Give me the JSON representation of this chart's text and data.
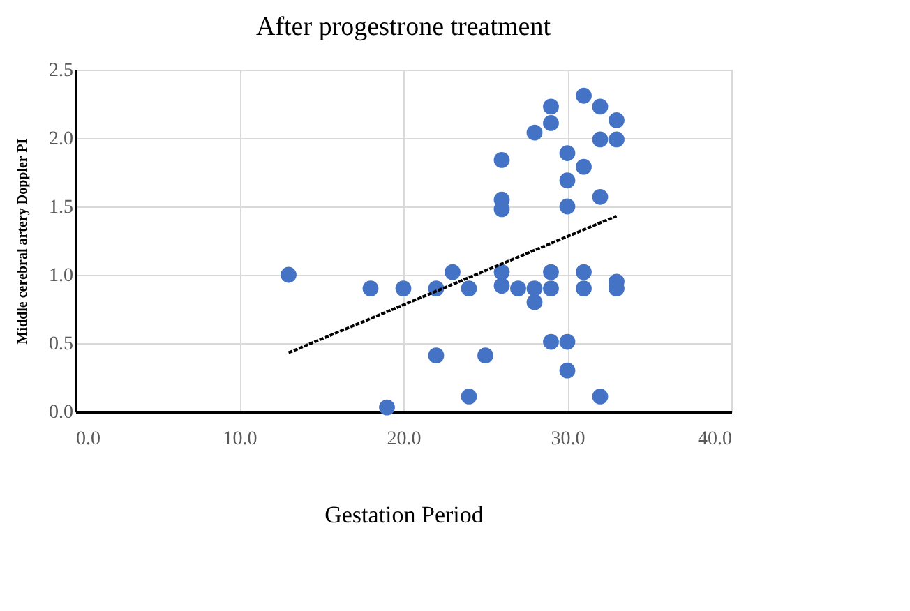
{
  "chart_data": {
    "type": "scatter",
    "title": "After progestrone treatment",
    "xlabel": "Gestation Period",
    "ylabel": "Middle cerebral artery Doppler PI",
    "series": [
      {
        "color": "#4472c4",
        "marker": "circle",
        "x": [
          13,
          18,
          19,
          20,
          22,
          22,
          23,
          24,
          24,
          25,
          26,
          26,
          26,
          26,
          26,
          27,
          28,
          28,
          28,
          29,
          29,
          29,
          29,
          29,
          30,
          30,
          30,
          30,
          30,
          31,
          31,
          31,
          31,
          32,
          32,
          32,
          32,
          33,
          33,
          33,
          33
        ],
        "values": [
          1.0,
          0.9,
          0.03,
          0.9,
          0.9,
          0.41,
          1.02,
          0.9,
          0.11,
          0.41,
          1.84,
          1.55,
          1.48,
          1.02,
          0.92,
          0.9,
          2.04,
          0.9,
          0.8,
          2.23,
          2.11,
          1.02,
          0.9,
          0.51,
          1.89,
          1.69,
          1.5,
          0.51,
          0.3,
          2.31,
          1.79,
          1.02,
          0.9,
          2.23,
          1.99,
          1.57,
          0.11,
          2.13,
          1.99,
          0.95,
          0.9
        ]
      },
      {
        "type": "line",
        "color": "#000000",
        "marker": "none",
        "line_style": "dashed",
        "x": [
          13,
          33
        ],
        "values": [
          0.43,
          1.43
        ]
      }
    ],
    "xlim": [
      0,
      40
    ],
    "xticks": [
      {
        "value": 0,
        "label": "0.0"
      },
      {
        "value": 10,
        "label": "10.0"
      },
      {
        "value": 20,
        "label": "20.0"
      },
      {
        "value": 30,
        "label": "30.0"
      },
      {
        "value": 40,
        "label": "40.0"
      }
    ],
    "ylim": [
      0,
      2.5
    ],
    "yticks": [
      {
        "value": 0,
        "label": "0.0"
      },
      {
        "value": 0.5,
        "label": "0.5"
      },
      {
        "value": 1,
        "label": "1.0"
      },
      {
        "value": 1.5,
        "label": "1.5"
      },
      {
        "value": 2,
        "label": "2.0"
      },
      {
        "value": 2.5,
        "label": "2.5"
      }
    ],
    "grid": true
  }
}
